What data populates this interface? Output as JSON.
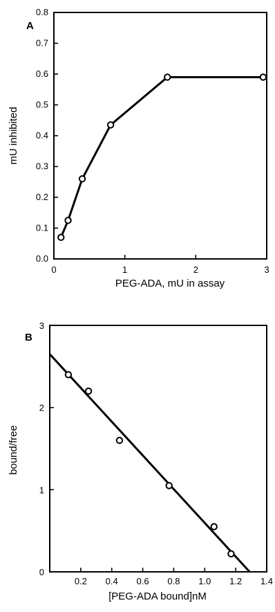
{
  "chart_data": [
    {
      "type": "line",
      "panel_label": "A",
      "title": "",
      "xlabel": "PEG-ADA, mU in assay",
      "ylabel": "mU inhibited",
      "xlim": [
        0,
        3
      ],
      "ylim": [
        0,
        0.8
      ],
      "x_ticks": [
        0,
        1,
        2,
        3
      ],
      "y_ticks": [
        0.0,
        0.1,
        0.2,
        0.3,
        0.4,
        0.5,
        0.6,
        0.7,
        0.8
      ],
      "x_tick_labels": [
        "0",
        "1",
        "2",
        "3"
      ],
      "y_tick_labels": [
        "0.0",
        "0.1",
        "0.2",
        "0.3",
        "0.4",
        "0.5",
        "0.6",
        "0.7",
        "0.8"
      ],
      "grid": false,
      "series": [
        {
          "x": [
            0.1,
            0.2,
            0.4,
            0.8,
            1.6,
            2.95
          ],
          "y": [
            0.07,
            0.125,
            0.26,
            0.435,
            0.59,
            0.59
          ]
        }
      ]
    },
    {
      "type": "scatter",
      "panel_label": "B",
      "title": "",
      "xlabel": "[PEG-ADA bound]nM",
      "ylabel": "bound/free",
      "xlim": [
        0,
        1.4
      ],
      "ylim": [
        0,
        3
      ],
      "x_ticks": [
        0.2,
        0.4,
        0.6,
        0.8,
        1.0,
        1.2,
        1.4
      ],
      "y_ticks": [
        0,
        1,
        2,
        3
      ],
      "x_tick_labels": [
        "0.2",
        "0.4",
        "0.6",
        "0.8",
        "1.0",
        "1.2",
        "1.4"
      ],
      "y_tick_labels": [
        "0",
        "1",
        "2",
        "3"
      ],
      "grid": false,
      "series": [
        {
          "x": [
            0.12,
            0.25,
            0.45,
            0.77,
            1.06,
            1.17
          ],
          "y": [
            2.4,
            2.2,
            1.6,
            1.05,
            0.55,
            0.22
          ]
        }
      ],
      "fit_line": {
        "x": [
          0,
          1.29
        ],
        "y": [
          2.65,
          0
        ]
      }
    }
  ]
}
